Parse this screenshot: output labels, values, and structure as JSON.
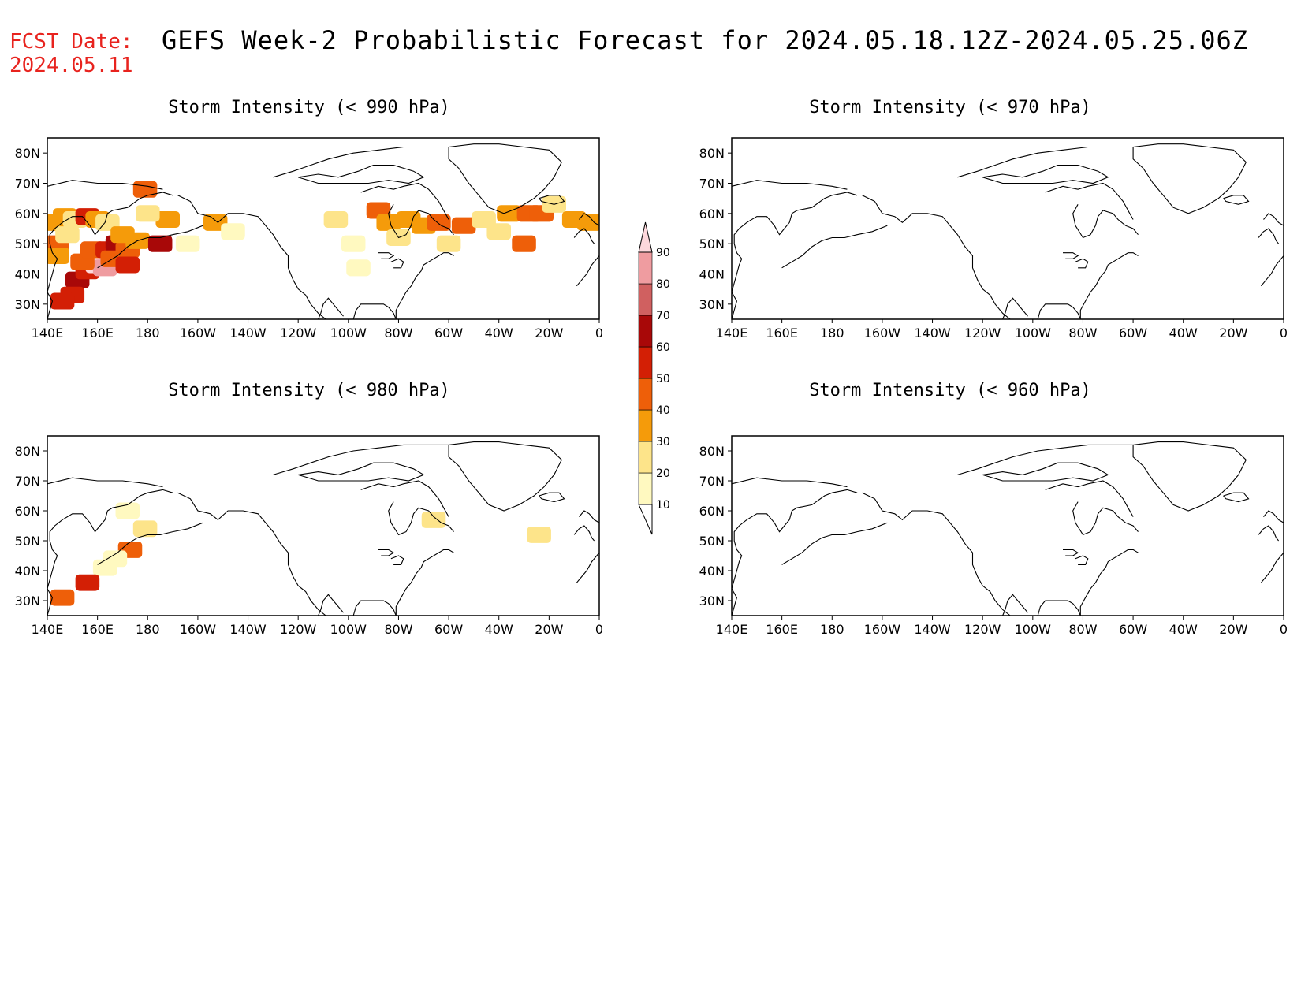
{
  "header": {
    "fcst_label": "FCST Date:",
    "fcst_date": "2024.05.11",
    "title": "GEFS Week-2 Probabilistic Forecast for 2024.05.18.12Z-2024.05.25.06Z"
  },
  "axes": {
    "lon_ticks": [
      "140E",
      "160E",
      "180",
      "160W",
      "140W",
      "120W",
      "100W",
      "80W",
      "60W",
      "40W",
      "20W",
      "0"
    ],
    "lat_ticks": [
      "80N",
      "70N",
      "60N",
      "50N",
      "40N",
      "30N"
    ]
  },
  "panels": [
    {
      "id": "p990",
      "title": "Storm Intensity (< 990 hPa)"
    },
    {
      "id": "p970",
      "title": "Storm Intensity (< 970 hPa)"
    },
    {
      "id": "p980",
      "title": "Storm Intensity (< 980 hPa)"
    },
    {
      "id": "p960",
      "title": "Storm Intensity (< 960 hPa)"
    }
  ],
  "colorbar": {
    "levels": [
      "10",
      "20",
      "30",
      "40",
      "50",
      "60",
      "70",
      "80",
      "90"
    ],
    "colors": [
      "#fff9c0",
      "#fde48a",
      "#f59b0a",
      "#ee5f09",
      "#d31f05",
      "#a80808",
      "#d06060",
      "#ef9ca0",
      "#fdd8dc"
    ]
  },
  "chart_data": [
    {
      "type": "heatmap",
      "title": "Storm Intensity (< 990 hPa)",
      "xlim": [
        140,
        360
      ],
      "ylim": [
        25,
        85
      ],
      "x_unit": "longitude (deg E)",
      "y_unit": "latitude (deg N)",
      "cells": [
        {
          "lon": 143,
          "lat": 57,
          "p": 30
        },
        {
          "lon": 147,
          "lat": 59,
          "p": 30
        },
        {
          "lon": 151,
          "lat": 58,
          "p": 20
        },
        {
          "lon": 144,
          "lat": 50,
          "p": 40
        },
        {
          "lon": 144,
          "lat": 46,
          "p": 30
        },
        {
          "lon": 148,
          "lat": 53,
          "p": 20
        },
        {
          "lon": 156,
          "lat": 59,
          "p": 50
        },
        {
          "lon": 160,
          "lat": 58,
          "p": 30
        },
        {
          "lon": 164,
          "lat": 57,
          "p": 20
        },
        {
          "lon": 152,
          "lat": 38,
          "p": 60
        },
        {
          "lon": 156,
          "lat": 41,
          "p": 50
        },
        {
          "lon": 160,
          "lat": 43,
          "p": 90
        },
        {
          "lon": 163,
          "lat": 42,
          "p": 80
        },
        {
          "lon": 154,
          "lat": 44,
          "p": 40
        },
        {
          "lon": 158,
          "lat": 48,
          "p": 40
        },
        {
          "lon": 164,
          "lat": 48,
          "p": 50
        },
        {
          "lon": 168,
          "lat": 50,
          "p": 60
        },
        {
          "lon": 172,
          "lat": 48,
          "p": 40
        },
        {
          "lon": 170,
          "lat": 53,
          "p": 30
        },
        {
          "lon": 176,
          "lat": 51,
          "p": 30
        },
        {
          "lon": 166,
          "lat": 45,
          "p": 40
        },
        {
          "lon": 150,
          "lat": 33,
          "p": 50
        },
        {
          "lon": 146,
          "lat": 31,
          "p": 50
        },
        {
          "lon": 172,
          "lat": 43,
          "p": 50
        },
        {
          "lon": 179,
          "lat": 68,
          "p": 40
        },
        {
          "lon": 185,
          "lat": 50,
          "p": 60
        },
        {
          "lon": 188,
          "lat": 58,
          "p": 30
        },
        {
          "lon": 180,
          "lat": 60,
          "p": 20
        },
        {
          "lon": 196,
          "lat": 50,
          "p": 10
        },
        {
          "lon": 207,
          "lat": 57,
          "p": 30
        },
        {
          "lon": 214,
          "lat": 54,
          "p": 10
        },
        {
          "lon": 255,
          "lat": 58,
          "p": 20
        },
        {
          "lon": 262,
          "lat": 50,
          "p": 10
        },
        {
          "lon": 264,
          "lat": 42,
          "p": 10
        },
        {
          "lon": 272,
          "lat": 61,
          "p": 40
        },
        {
          "lon": 276,
          "lat": 57,
          "p": 30
        },
        {
          "lon": 280,
          "lat": 52,
          "p": 20
        },
        {
          "lon": 284,
          "lat": 58,
          "p": 30
        },
        {
          "lon": 290,
          "lat": 56,
          "p": 30
        },
        {
          "lon": 296,
          "lat": 57,
          "p": 40
        },
        {
          "lon": 300,
          "lat": 50,
          "p": 20
        },
        {
          "lon": 306,
          "lat": 56,
          "p": 40
        },
        {
          "lon": 314,
          "lat": 58,
          "p": 20
        },
        {
          "lon": 324,
          "lat": 60,
          "p": 30
        },
        {
          "lon": 332,
          "lat": 60,
          "p": 40
        },
        {
          "lon": 337,
          "lat": 60,
          "p": 40
        },
        {
          "lon": 330,
          "lat": 50,
          "p": 40
        },
        {
          "lon": 342,
          "lat": 63,
          "p": 20
        },
        {
          "lon": 350,
          "lat": 58,
          "p": 30
        },
        {
          "lon": 356,
          "lat": 57,
          "p": 30
        },
        {
          "lon": 320,
          "lat": 54,
          "p": 20
        }
      ]
    },
    {
      "type": "heatmap",
      "title": "Storm Intensity (< 970 hPa)",
      "xlim": [
        140,
        360
      ],
      "ylim": [
        25,
        85
      ],
      "cells": []
    },
    {
      "type": "heatmap",
      "title": "Storm Intensity (< 980 hPa)",
      "xlim": [
        140,
        360
      ],
      "ylim": [
        25,
        85
      ],
      "cells": [
        {
          "lon": 173,
          "lat": 47,
          "p": 40
        },
        {
          "lon": 179,
          "lat": 54,
          "p": 20
        },
        {
          "lon": 167,
          "lat": 44,
          "p": 10
        },
        {
          "lon": 163,
          "lat": 41,
          "p": 10
        },
        {
          "lon": 156,
          "lat": 36,
          "p": 50
        },
        {
          "lon": 146,
          "lat": 31,
          "p": 40
        },
        {
          "lon": 294,
          "lat": 57,
          "p": 20
        },
        {
          "lon": 336,
          "lat": 52,
          "p": 20
        },
        {
          "lon": 172,
          "lat": 60,
          "p": 10
        }
      ]
    },
    {
      "type": "heatmap",
      "title": "Storm Intensity (< 960 hPa)",
      "xlim": [
        140,
        360
      ],
      "ylim": [
        25,
        85
      ],
      "cells": []
    }
  ]
}
